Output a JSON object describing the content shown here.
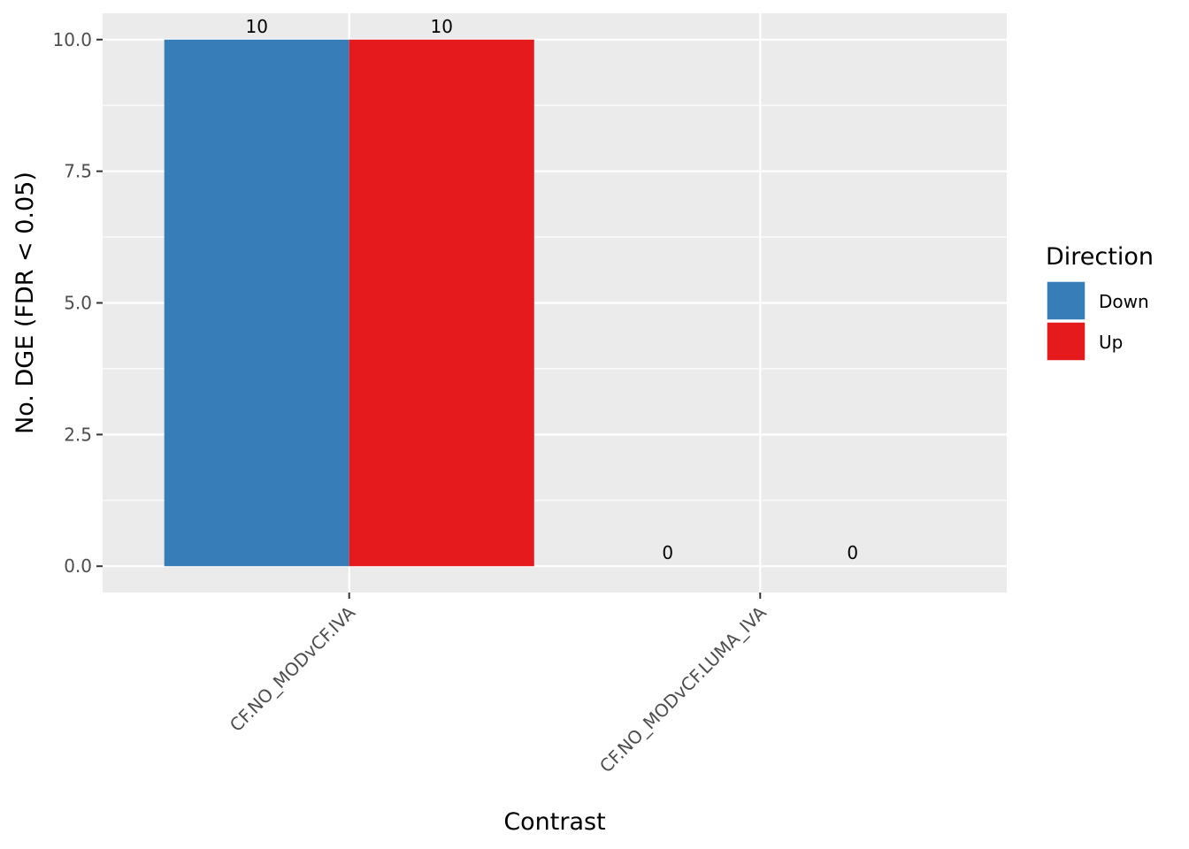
{
  "chart_data": {
    "type": "bar",
    "xlabel": "Contrast",
    "ylabel": "No. DGE (FDR < 0.05)",
    "categories": [
      "CF.NO_MODvCF.IVA",
      "CF.NO_MODvCF.LUMA_IVA"
    ],
    "series": [
      {
        "name": "Down",
        "color": "#377EB8",
        "values": [
          10,
          0
        ]
      },
      {
        "name": "Up",
        "color": "#E41A1C",
        "values": [
          10,
          0
        ]
      }
    ],
    "ylim": [
      -0.5,
      10.5
    ],
    "yticks": [
      0.0,
      2.5,
      5.0,
      7.5,
      10.0
    ],
    "ytick_labels": [
      "0.0",
      "2.5",
      "5.0",
      "7.5",
      "10.0"
    ],
    "data_labels": [
      [
        "10",
        "0"
      ],
      [
        "10",
        "0"
      ]
    ],
    "legend": {
      "title": "Direction",
      "position": "right"
    },
    "grid": true,
    "panel_background": "#EBEBEB",
    "x_tick_label_rotation": 45
  }
}
